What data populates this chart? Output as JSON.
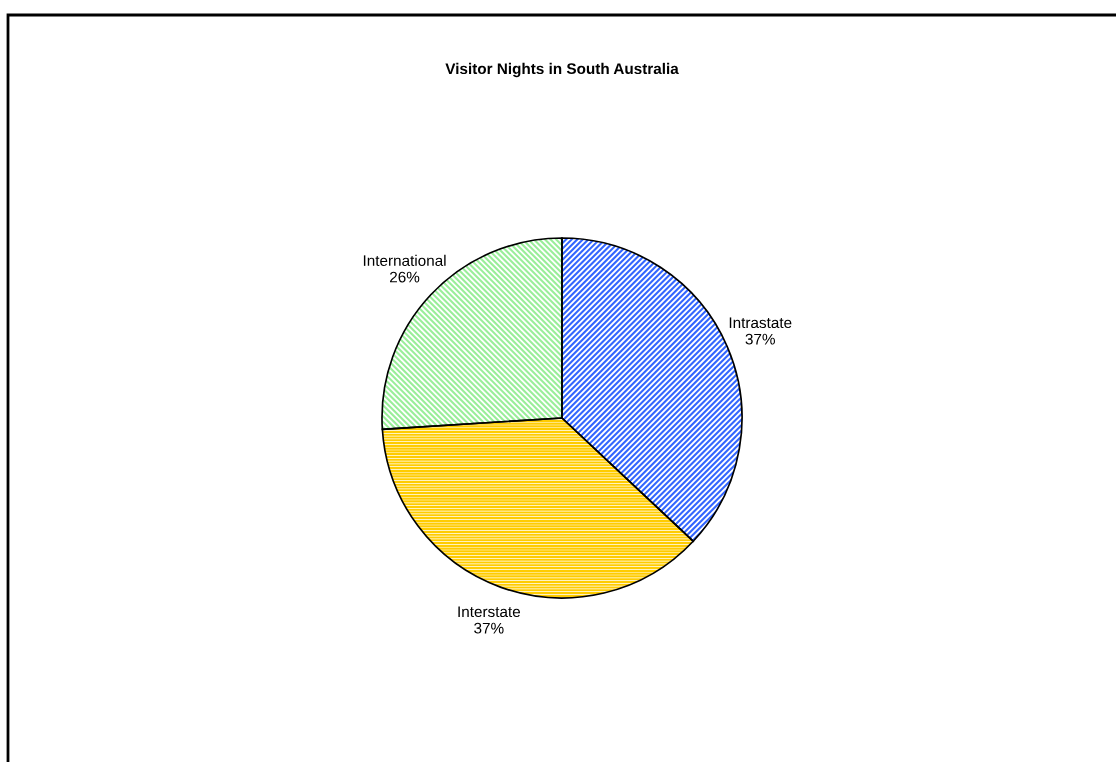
{
  "chart_data": {
    "type": "pie",
    "title": "Visitor Nights in South Australia",
    "categories": [
      "Intrastate",
      "Interstate",
      "International"
    ],
    "values": [
      37,
      37,
      26
    ],
    "value_labels": [
      "37%",
      "37%",
      "26%"
    ],
    "colors": [
      "#3366ff",
      "#ffcc00",
      "#99ee99"
    ],
    "legend": false
  }
}
